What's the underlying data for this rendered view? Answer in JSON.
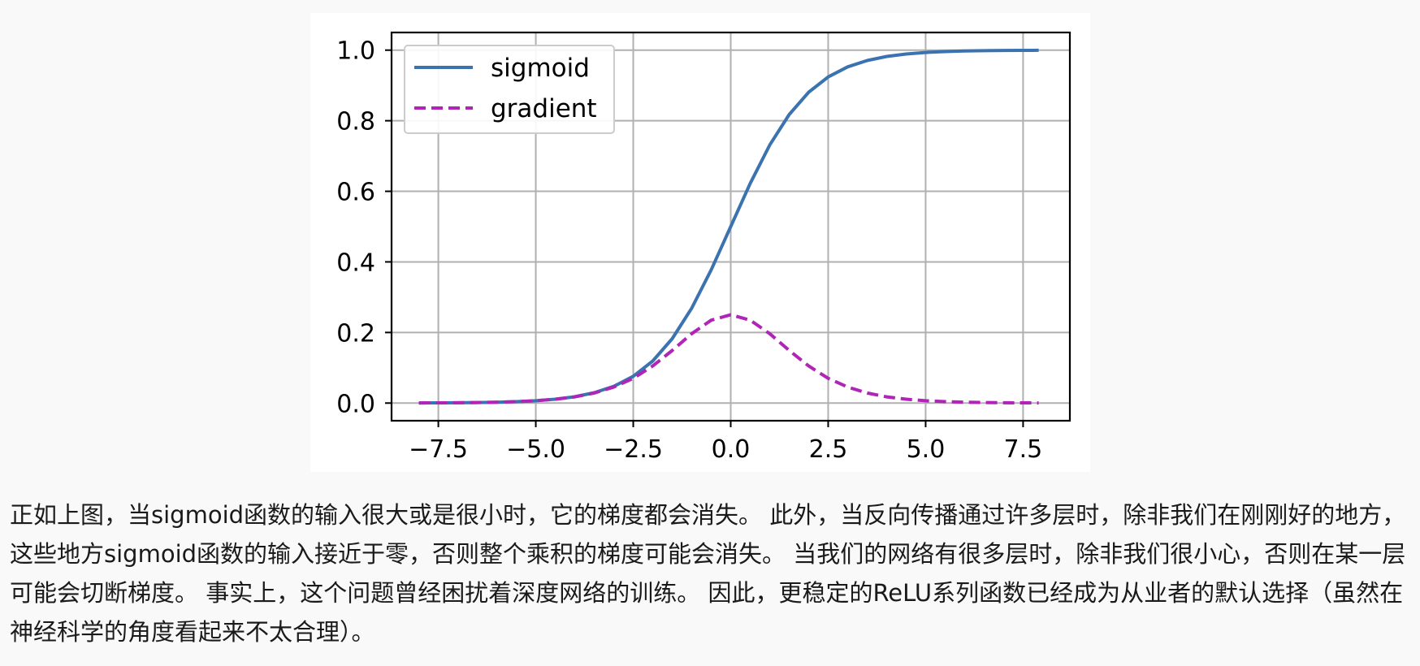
{
  "chart_data": {
    "type": "line",
    "title": "",
    "xlabel": "",
    "ylabel": "",
    "xlim": [
      -8.7,
      8.7
    ],
    "ylim": [
      -0.05,
      1.05
    ],
    "xticks": [
      -7.5,
      -5.0,
      -2.5,
      0.0,
      2.5,
      5.0,
      7.5
    ],
    "xtick_labels": [
      "−7.5",
      "−5.0",
      "−2.5",
      "0.0",
      "2.5",
      "5.0",
      "7.5"
    ],
    "yticks": [
      0.0,
      0.2,
      0.4,
      0.6,
      0.8,
      1.0
    ],
    "ytick_labels": [
      "0.0",
      "0.2",
      "0.4",
      "0.6",
      "0.8",
      "1.0"
    ],
    "grid": true,
    "legend_position": "top-left",
    "series": [
      {
        "name": "sigmoid",
        "style": "solid",
        "color": "#3b73b0",
        "x": [
          -8,
          -7.5,
          -7,
          -6.5,
          -6,
          -5.5,
          -5,
          -4.5,
          -4,
          -3.5,
          -3,
          -2.5,
          -2,
          -1.5,
          -1,
          -0.5,
          0,
          0.5,
          1,
          1.5,
          2,
          2.5,
          3,
          3.5,
          4,
          4.5,
          5,
          5.5,
          6,
          6.5,
          7,
          7.5,
          7.9
        ],
        "y": [
          0.0003,
          0.0006,
          0.0009,
          0.0015,
          0.0025,
          0.0041,
          0.0067,
          0.011,
          0.018,
          0.0293,
          0.0474,
          0.0759,
          0.1192,
          0.1824,
          0.2689,
          0.3775,
          0.5,
          0.6225,
          0.7311,
          0.8176,
          0.8808,
          0.9241,
          0.9526,
          0.9707,
          0.982,
          0.989,
          0.9933,
          0.9959,
          0.9975,
          0.9985,
          0.9991,
          0.9994,
          0.9996
        ]
      },
      {
        "name": "gradient",
        "style": "dashed",
        "color": "#b025b7",
        "x": [
          -8,
          -7.5,
          -7,
          -6.5,
          -6,
          -5.5,
          -5,
          -4.5,
          -4,
          -3.5,
          -3,
          -2.5,
          -2,
          -1.5,
          -1,
          -0.5,
          0,
          0.5,
          1,
          1.5,
          2,
          2.5,
          3,
          3.5,
          4,
          4.5,
          5,
          5.5,
          6,
          6.5,
          7,
          7.5,
          7.9
        ],
        "y": [
          0.0003,
          0.0006,
          0.0009,
          0.0015,
          0.0025,
          0.0041,
          0.0066,
          0.0109,
          0.0177,
          0.0285,
          0.0452,
          0.0701,
          0.105,
          0.1491,
          0.1966,
          0.235,
          0.25,
          0.235,
          0.1966,
          0.1491,
          0.105,
          0.0701,
          0.0452,
          0.0285,
          0.0177,
          0.0109,
          0.0066,
          0.0041,
          0.0025,
          0.0015,
          0.0009,
          0.0006,
          0.0004
        ]
      }
    ]
  },
  "caption": {
    "text": "正如上图，当sigmoid函数的输入很大或是很小时，它的梯度都会消失。 此外，当反向传播通过许多层时，除非我们在刚刚好的地方， 这些地方sigmoid函数的输入接近于零，否则整个乘积的梯度可能会消失。 当我们的网络有很多层时，除非我们很小心，否则在某一层可能会切断梯度。 事实上，这个问题曾经困扰着深度网络的训练。 因此，更稳定的ReLU系列函数已经成为从业者的默认选择（虽然在神经科学的角度看起来不太合理）。"
  }
}
